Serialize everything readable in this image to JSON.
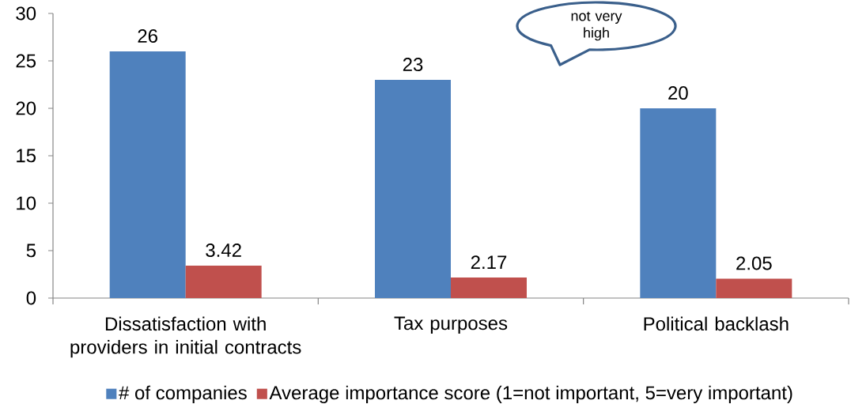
{
  "chart_data": {
    "type": "bar",
    "categories": [
      "Dissatisfaction with providers in initial contracts",
      "Tax purposes",
      "Political backlash"
    ],
    "series": [
      {
        "name": "# of companies",
        "color": "#4f81bd",
        "values": [
          26,
          23,
          20
        ]
      },
      {
        "name": "Average importance score (1=not important, 5=very important)",
        "color": "#c0504d",
        "values": [
          3.42,
          2.17,
          2.05
        ]
      }
    ],
    "ylim": [
      0,
      30
    ],
    "yticks": [
      0,
      5,
      10,
      15,
      20,
      25,
      30
    ],
    "data_labels": true,
    "legend": "bottom",
    "annotations": [
      "not very high"
    ]
  }
}
